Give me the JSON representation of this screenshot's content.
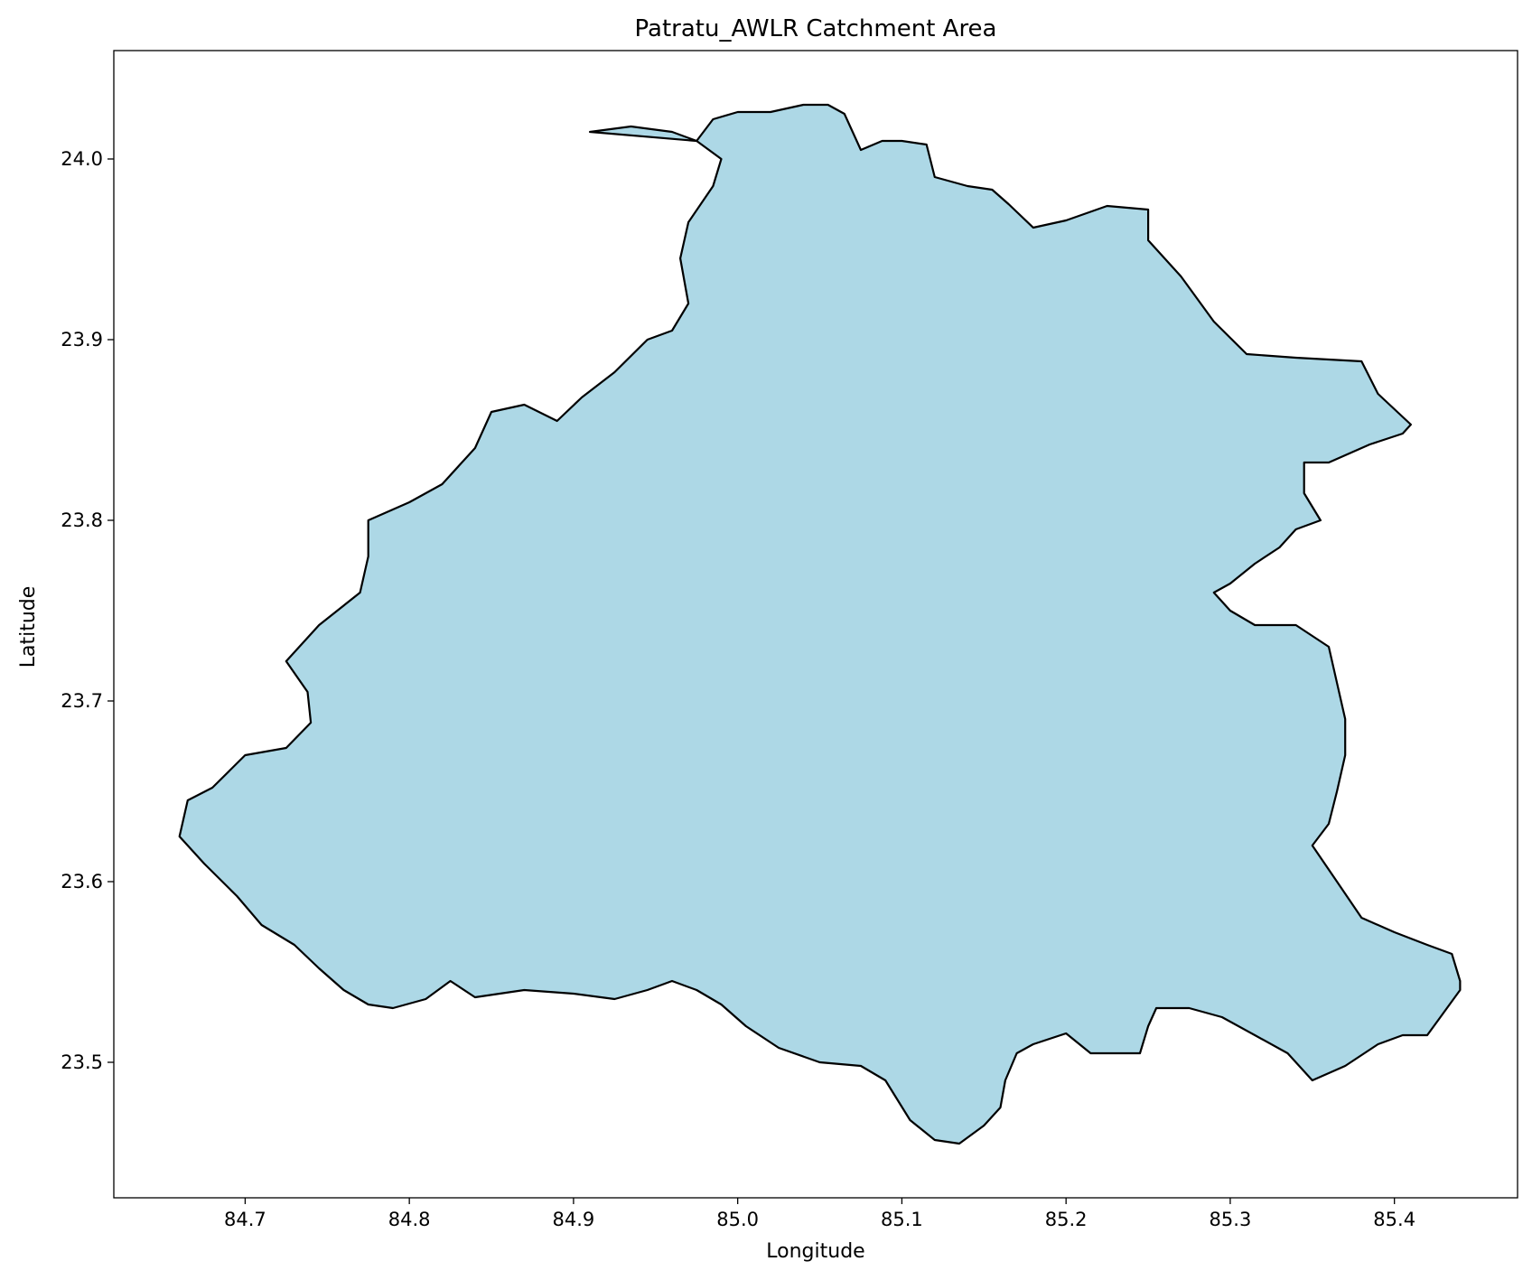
{
  "chart_data": {
    "type": "map",
    "title": "Patratu_AWLR Catchment Area",
    "xlabel": "Longitude",
    "ylabel": "Latitude",
    "xlim": [
      84.62,
      85.475
    ],
    "ylim": [
      23.425,
      24.06
    ],
    "x_ticks": [
      84.7,
      84.8,
      84.9,
      85.0,
      85.1,
      85.2,
      85.3,
      85.4
    ],
    "x_tick_labels": [
      "84.7",
      "84.8",
      "84.9",
      "85.0",
      "85.1",
      "85.2",
      "85.3",
      "85.4"
    ],
    "y_ticks": [
      23.5,
      23.6,
      23.7,
      23.8,
      23.9,
      24.0
    ],
    "y_tick_labels": [
      "23.5",
      "23.6",
      "23.7",
      "23.8",
      "23.9",
      "24.0"
    ],
    "grid": false,
    "fill_color": "#add8e6",
    "edge_color": "#000000",
    "polygon": {
      "name": "Patratu_AWLR",
      "coordinates": [
        [
          84.91,
          24.015
        ],
        [
          84.935,
          24.018
        ],
        [
          84.96,
          24.015
        ],
        [
          84.975,
          24.01
        ],
        [
          84.985,
          24.022
        ],
        [
          85.0,
          24.026
        ],
        [
          85.02,
          24.026
        ],
        [
          85.04,
          24.03
        ],
        [
          85.055,
          24.03
        ],
        [
          85.065,
          24.025
        ],
        [
          85.075,
          24.005
        ],
        [
          85.088,
          24.01
        ],
        [
          85.1,
          24.01
        ],
        [
          85.115,
          24.008
        ],
        [
          85.12,
          23.99
        ],
        [
          85.14,
          23.985
        ],
        [
          85.155,
          23.983
        ],
        [
          85.165,
          23.975
        ],
        [
          85.18,
          23.962
        ],
        [
          85.2,
          23.966
        ],
        [
          85.225,
          23.974
        ],
        [
          85.25,
          23.972
        ],
        [
          85.25,
          23.955
        ],
        [
          85.27,
          23.935
        ],
        [
          85.29,
          23.91
        ],
        [
          85.31,
          23.892
        ],
        [
          85.34,
          23.89
        ],
        [
          85.38,
          23.888
        ],
        [
          85.39,
          23.87
        ],
        [
          85.41,
          23.853
        ],
        [
          85.405,
          23.848
        ],
        [
          85.385,
          23.842
        ],
        [
          85.36,
          23.832
        ],
        [
          85.345,
          23.832
        ],
        [
          85.345,
          23.815
        ],
        [
          85.355,
          23.8
        ],
        [
          85.34,
          23.795
        ],
        [
          85.33,
          23.785
        ],
        [
          85.315,
          23.776
        ],
        [
          85.3,
          23.765
        ],
        [
          85.29,
          23.76
        ],
        [
          85.3,
          23.75
        ],
        [
          85.315,
          23.742
        ],
        [
          85.34,
          23.742
        ],
        [
          85.36,
          23.73
        ],
        [
          85.365,
          23.71
        ],
        [
          85.37,
          23.69
        ],
        [
          85.37,
          23.67
        ],
        [
          85.365,
          23.65
        ],
        [
          85.36,
          23.632
        ],
        [
          85.35,
          23.62
        ],
        [
          85.365,
          23.6
        ],
        [
          85.38,
          23.58
        ],
        [
          85.4,
          23.572
        ],
        [
          85.42,
          23.565
        ],
        [
          85.435,
          23.56
        ],
        [
          85.44,
          23.545
        ],
        [
          85.44,
          23.54
        ],
        [
          85.428,
          23.525
        ],
        [
          85.42,
          23.515
        ],
        [
          85.405,
          23.515
        ],
        [
          85.39,
          23.51
        ],
        [
          85.37,
          23.498
        ],
        [
          85.35,
          23.49
        ],
        [
          85.335,
          23.505
        ],
        [
          85.315,
          23.515
        ],
        [
          85.295,
          23.525
        ],
        [
          85.275,
          23.53
        ],
        [
          85.255,
          23.53
        ],
        [
          85.25,
          23.52
        ],
        [
          85.245,
          23.505
        ],
        [
          85.23,
          23.505
        ],
        [
          85.215,
          23.505
        ],
        [
          85.2,
          23.516
        ],
        [
          85.18,
          23.51
        ],
        [
          85.17,
          23.505
        ],
        [
          85.163,
          23.49
        ],
        [
          85.16,
          23.475
        ],
        [
          85.15,
          23.465
        ],
        [
          85.135,
          23.455
        ],
        [
          85.12,
          23.457
        ],
        [
          85.105,
          23.468
        ],
        [
          85.09,
          23.49
        ],
        [
          85.075,
          23.498
        ],
        [
          85.05,
          23.5
        ],
        [
          85.025,
          23.508
        ],
        [
          85.005,
          23.52
        ],
        [
          84.99,
          23.532
        ],
        [
          84.975,
          23.54
        ],
        [
          84.96,
          23.545
        ],
        [
          84.945,
          23.54
        ],
        [
          84.925,
          23.535
        ],
        [
          84.9,
          23.538
        ],
        [
          84.87,
          23.54
        ],
        [
          84.84,
          23.536
        ],
        [
          84.825,
          23.545
        ],
        [
          84.81,
          23.535
        ],
        [
          84.79,
          23.53
        ],
        [
          84.775,
          23.532
        ],
        [
          84.76,
          23.54
        ],
        [
          84.745,
          23.552
        ],
        [
          84.73,
          23.565
        ],
        [
          84.71,
          23.576
        ],
        [
          84.695,
          23.592
        ],
        [
          84.675,
          23.61
        ],
        [
          84.66,
          23.625
        ],
        [
          84.665,
          23.645
        ],
        [
          84.68,
          23.652
        ],
        [
          84.7,
          23.67
        ],
        [
          84.725,
          23.674
        ],
        [
          84.74,
          23.688
        ],
        [
          84.738,
          23.705
        ],
        [
          84.725,
          23.722
        ],
        [
          84.745,
          23.742
        ],
        [
          84.77,
          23.76
        ],
        [
          84.775,
          23.78
        ],
        [
          84.775,
          23.8
        ],
        [
          84.8,
          23.81
        ],
        [
          84.82,
          23.82
        ],
        [
          84.84,
          23.84
        ],
        [
          84.85,
          23.86
        ],
        [
          84.87,
          23.864
        ],
        [
          84.89,
          23.855
        ],
        [
          84.905,
          23.868
        ],
        [
          84.925,
          23.882
        ],
        [
          84.945,
          23.9
        ],
        [
          84.96,
          23.905
        ],
        [
          84.97,
          23.92
        ],
        [
          84.965,
          23.945
        ],
        [
          84.97,
          23.965
        ],
        [
          84.985,
          23.985
        ],
        [
          84.99,
          24.0
        ],
        [
          84.975,
          24.01
        ],
        [
          84.91,
          24.015
        ]
      ]
    }
  }
}
